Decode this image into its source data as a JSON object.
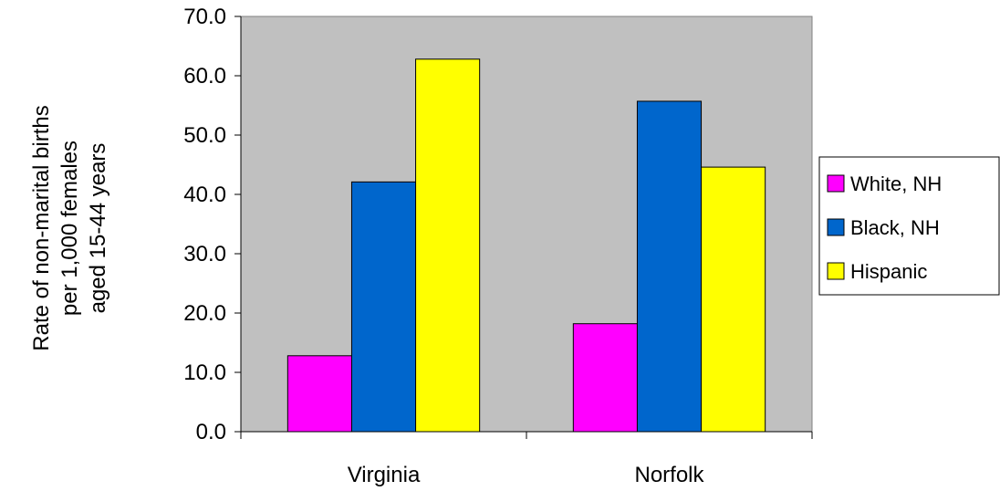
{
  "chart_data": {
    "type": "bar",
    "title": "",
    "xlabel": "",
    "ylabel_lines": [
      "Rate of non-marital births",
      "per 1,000 females",
      "aged 15-44 years"
    ],
    "categories": [
      "Virginia",
      "Norfolk"
    ],
    "series": [
      {
        "name": "White, NH",
        "color": "#FF00FF",
        "values": [
          12.8,
          18.2
        ]
      },
      {
        "name": "Black, NH",
        "color": "#0066CC",
        "values": [
          42.1,
          55.7
        ]
      },
      {
        "name": "Hispanic",
        "color": "#FFFF00",
        "values": [
          62.8,
          44.6
        ]
      }
    ],
    "ylim": [
      0,
      70
    ],
    "yticks": [
      "0.0",
      "10.0",
      "20.0",
      "30.0",
      "40.0",
      "50.0",
      "60.0",
      "70.0"
    ],
    "plot_background": "#C0C0C0",
    "grid": false,
    "legend_position": "right"
  }
}
